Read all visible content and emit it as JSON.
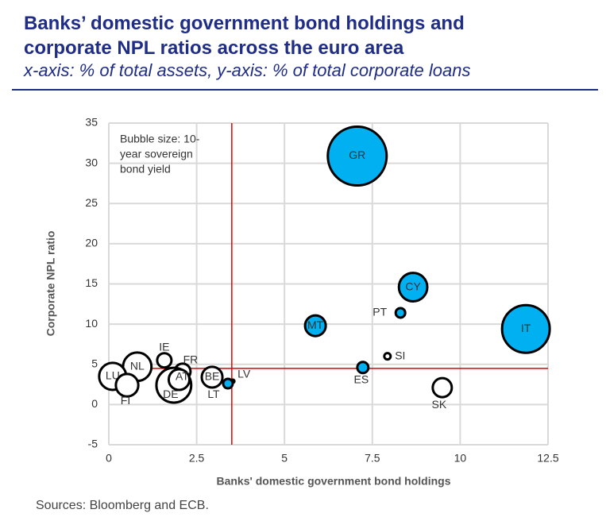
{
  "chart_data": {
    "type": "bubble",
    "title": "Banks’ domestic government bond holdings and corporate NPL ratios across the euro area",
    "subtitle": "x-axis: % of total assets, y-axis: % of total corporate loans",
    "x_label": "Banks' domestic government bond holdings",
    "y_label": "Corporate NPL ratio",
    "annotation": [
      "Bubble size: 10-",
      "year sovereign",
      "bond yield"
    ],
    "source": "Sources: Bloomberg and ECB.",
    "xlim": [
      0,
      12.5
    ],
    "xticks": [
      0,
      2.5,
      5,
      7.5,
      10,
      12.5
    ],
    "ylim": [
      -5,
      35
    ],
    "yticks": [
      -5,
      0,
      5,
      10,
      15,
      20,
      25,
      30,
      35
    ],
    "grid": true,
    "reference_lines": {
      "x": 3.5,
      "y": 4.5,
      "color": "#e00000"
    },
    "points": [
      {
        "label": "GR",
        "x": 7.07,
        "y": 30.9,
        "size": 13.7,
        "color": "#00b0f0"
      },
      {
        "label": "CY",
        "x": 8.66,
        "y": 14.6,
        "size": 3.2,
        "color": "#00b0f0"
      },
      {
        "label": "PT",
        "x": 8.3,
        "y": 11.4,
        "size": 0.36,
        "color": "#00b0f0"
      },
      {
        "label": "IT",
        "x": 11.87,
        "y": 9.4,
        "size": 9,
        "color": "#00b0f0"
      },
      {
        "label": "MT",
        "x": 5.88,
        "y": 9.8,
        "size": 1.7,
        "color": "#00b0f0"
      },
      {
        "label": "SI",
        "x": 7.93,
        "y": 6.0,
        "size": 0.16,
        "color": "#ffffff"
      },
      {
        "label": "ES",
        "x": 7.23,
        "y": 4.6,
        "size": 0.49,
        "color": "#00b0f0"
      },
      {
        "label": "SK",
        "x": 9.49,
        "y": 2.1,
        "size": 1.44,
        "color": "#ffffff"
      },
      {
        "label": "LV",
        "x": 3.53,
        "y": 2.9,
        "size": 0.04,
        "color": "#ffffff"
      },
      {
        "label": "LT",
        "x": 3.39,
        "y": 2.6,
        "size": 0.36,
        "color": "#00b0f0"
      },
      {
        "label": "BE",
        "x": 2.94,
        "y": 3.4,
        "size": 1.7,
        "color": "#ffffff"
      },
      {
        "label": "FR",
        "x": 2.1,
        "y": 4.1,
        "size": 1.0,
        "color": "#ffffff"
      },
      {
        "label": "IE",
        "x": 1.58,
        "y": 5.5,
        "size": 0.81,
        "color": "#ffffff"
      },
      {
        "label": "DE",
        "x": 1.85,
        "y": 2.4,
        "size": 4.8,
        "color": "#ffffff"
      },
      {
        "label": "AT",
        "x": 2.0,
        "y": 3.1,
        "size": 1.7,
        "color": "#ffffff"
      },
      {
        "label": "NL",
        "x": 0.81,
        "y": 4.7,
        "size": 3.2,
        "color": "#ffffff"
      },
      {
        "label": "LU",
        "x": 0.11,
        "y": 3.5,
        "size": 2.9,
        "color": "#ffffff"
      },
      {
        "label": "FI",
        "x": 0.52,
        "y": 2.4,
        "size": 2.0,
        "color": "#ffffff"
      }
    ]
  }
}
